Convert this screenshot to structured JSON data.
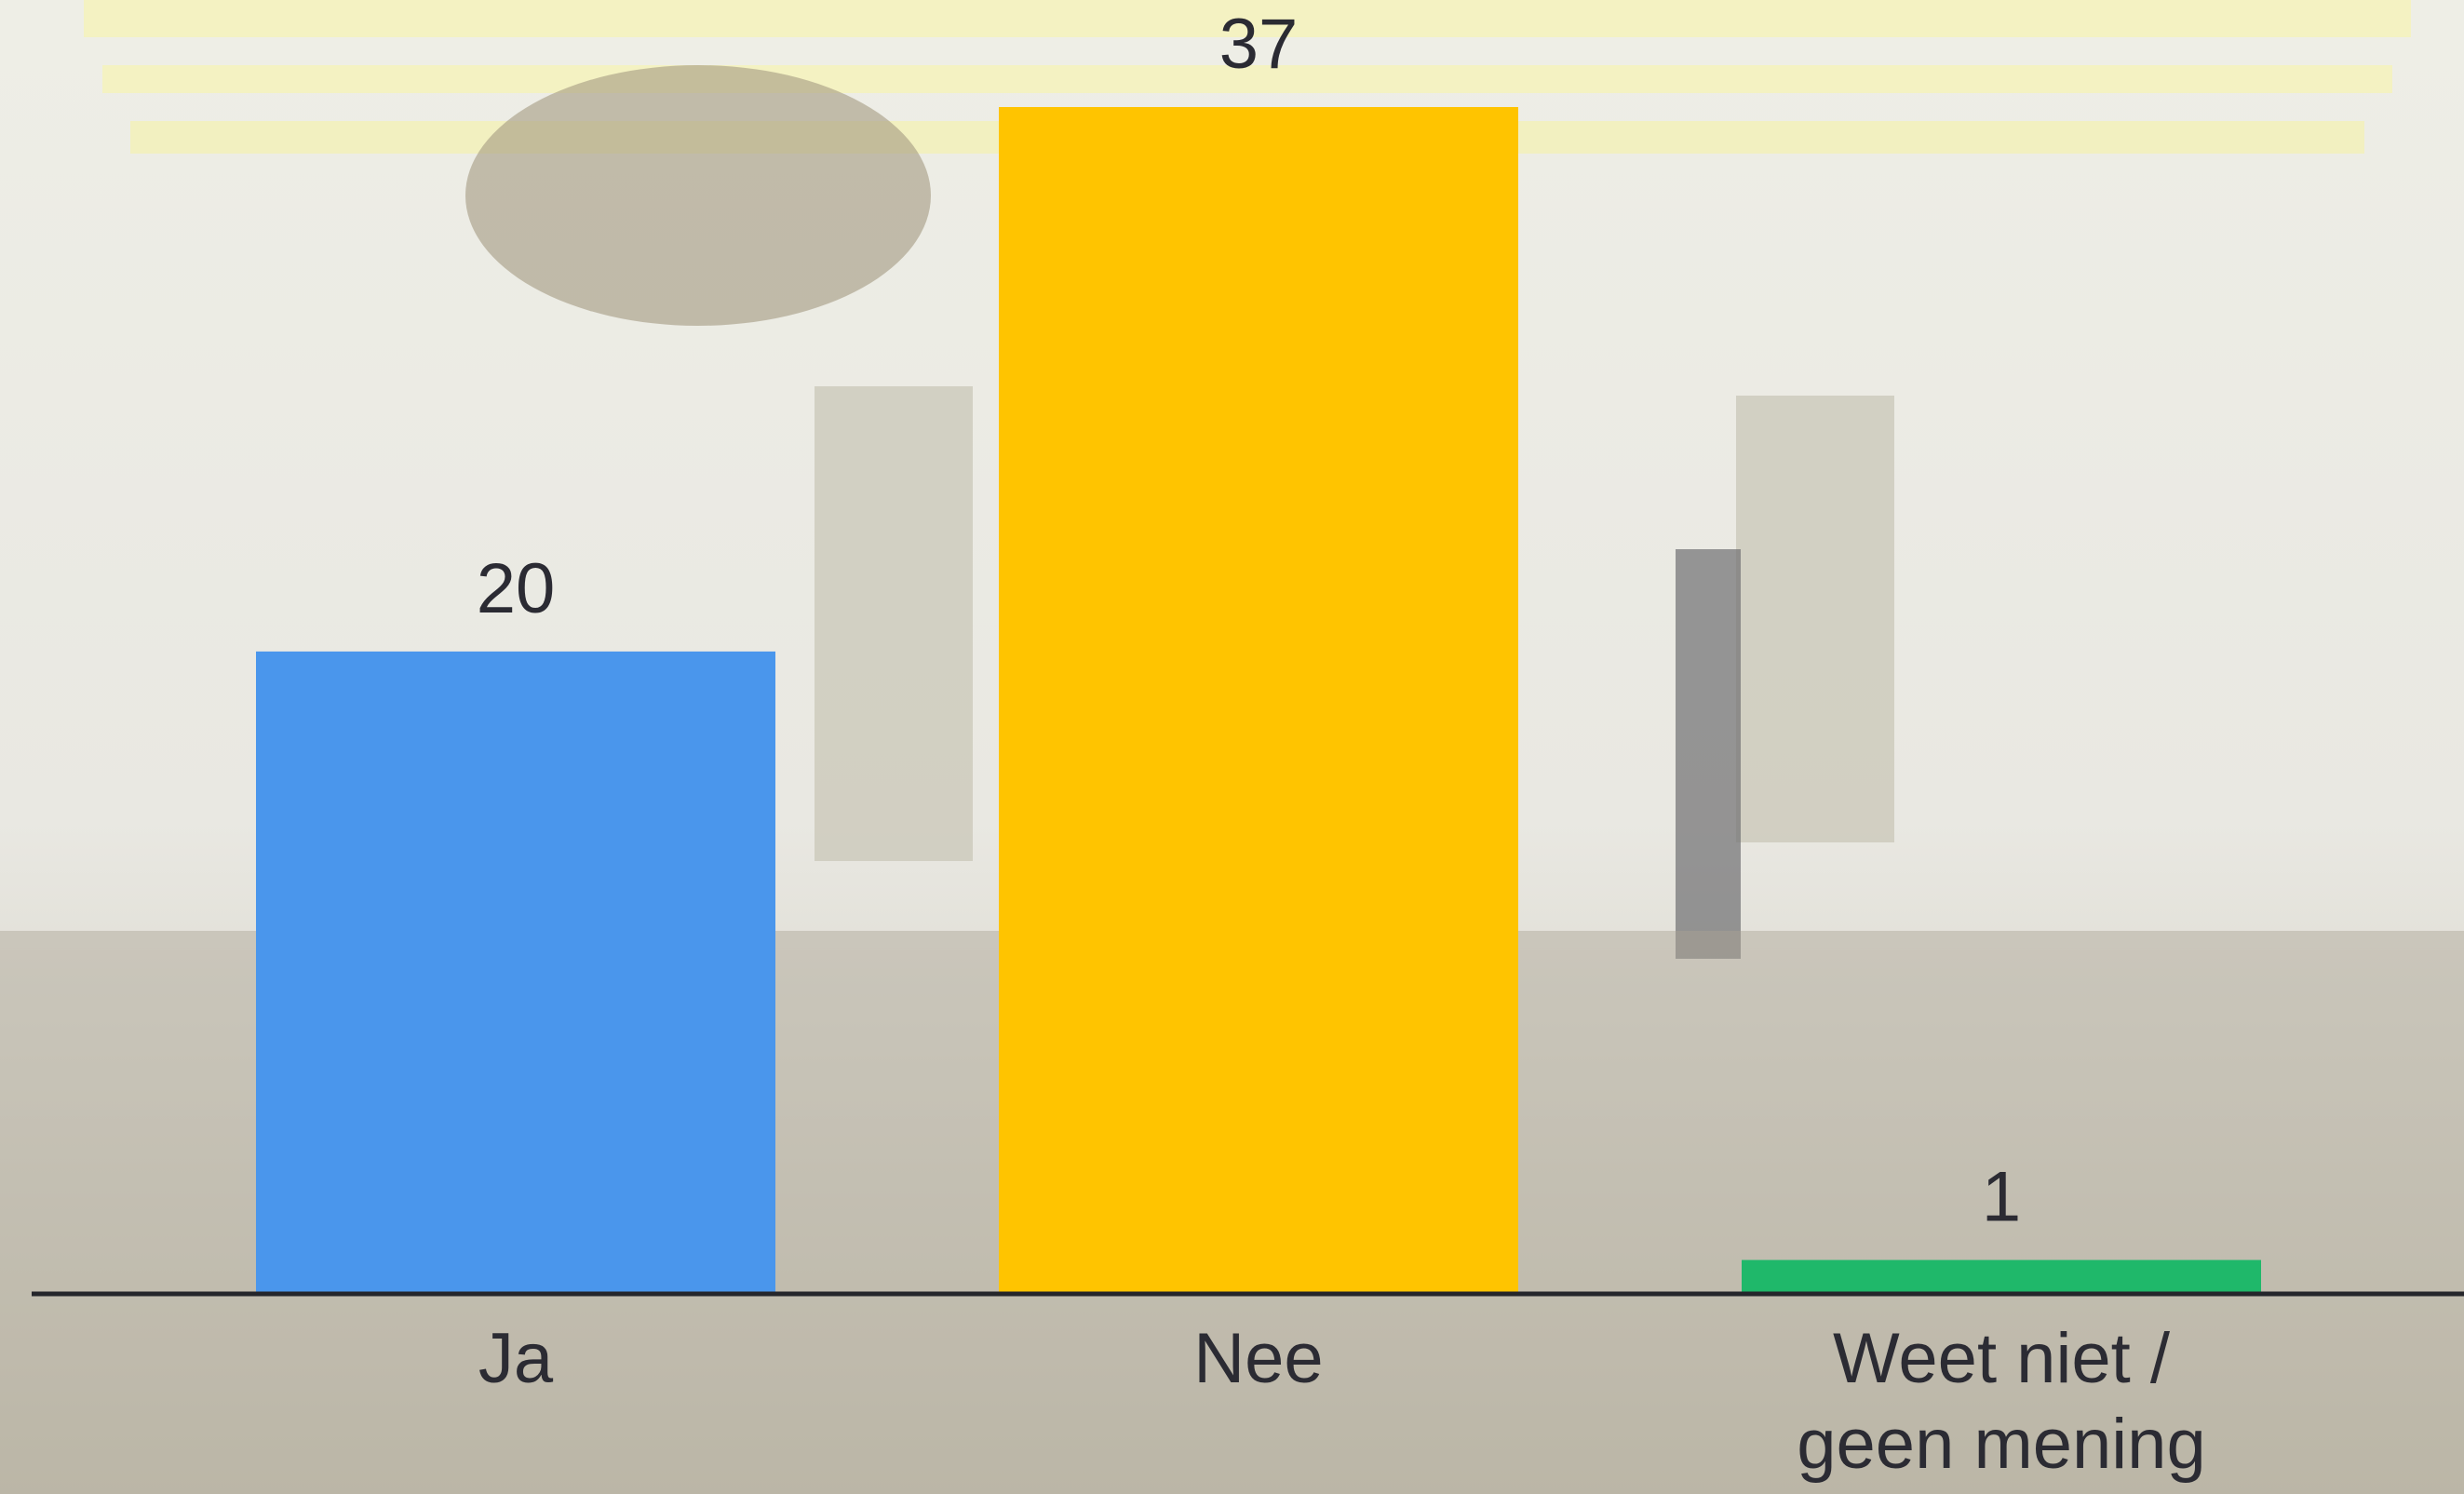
{
  "chart_data": {
    "type": "bar",
    "categories": [
      "Ja",
      "Nee",
      "Weet niet / geen mening"
    ],
    "values": [
      20,
      37,
      1
    ],
    "colors": [
      "#4a96ec",
      "#ffc400",
      "#1fb86a"
    ]
  }
}
